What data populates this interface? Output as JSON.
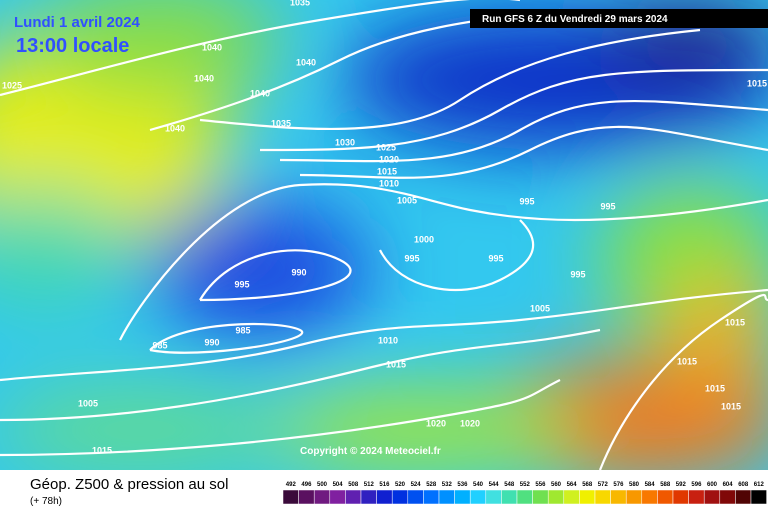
{
  "header": {
    "date": "Lundi 1 avril 2024",
    "time": "13:00 locale",
    "run": "Run GFS 6 Z du Vendredi 29 mars 2024"
  },
  "isobar_labels": [
    "1035",
    "1040",
    "1040",
    "1040",
    "1040",
    "1025",
    "1040",
    "1035",
    "1030",
    "1025",
    "1020",
    "1015",
    "1010",
    "1005",
    "1000",
    "995",
    "995",
    "995",
    "995",
    "995",
    "990",
    "995",
    "985",
    "985",
    "990",
    "1010",
    "1015",
    "1005",
    "1005",
    "1015",
    "1020",
    "1020",
    "1015",
    "1015",
    "1015",
    "1015",
    "1015"
  ],
  "copyright": "Copyright © 2024 Meteociel.fr",
  "footer": {
    "title": "Géop. Z500 & pression au sol",
    "lead": "(+ 78h)"
  },
  "colorbar": {
    "labels": [
      "492",
      "496",
      "500",
      "504",
      "508",
      "512",
      "516",
      "520",
      "524",
      "528",
      "532",
      "536",
      "540",
      "544",
      "548",
      "552",
      "556",
      "560",
      "564",
      "568",
      "572",
      "576",
      "580",
      "584",
      "588",
      "592",
      "596",
      "600",
      "604",
      "608",
      "612"
    ]
  }
}
